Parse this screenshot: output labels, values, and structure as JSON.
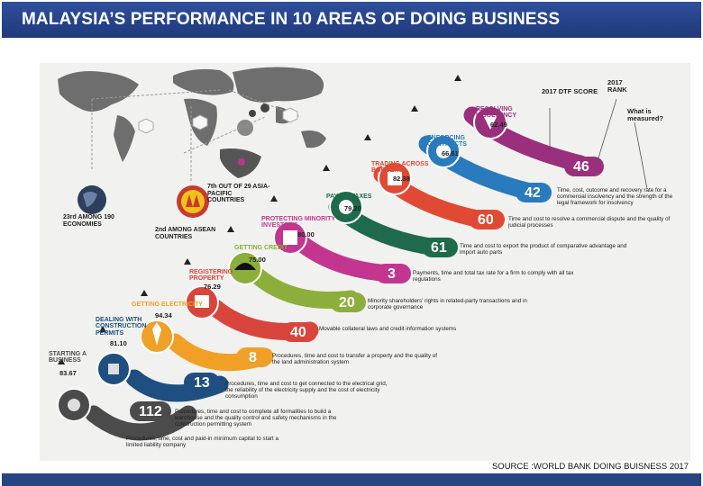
{
  "title": "MALAYSIA’S PERFORMANCE IN 10 AREAS OF DOING BUSINESS",
  "source": "SOURCE :WORLD BANK DOING BUISNESS 2017",
  "headers": {
    "dtf": "2017 DTF SCORE",
    "rank": "2017 RANK",
    "measured": "What is measured?"
  },
  "notes": {
    "world": "23rd AMONG 190 ECONOMIES",
    "asia": "7th OUT OF 29 ASIA-PACIFIC COUNTRIES",
    "asean": "2nd AMONG ASEAN COUNTRIES"
  },
  "areas": [
    {
      "label": "STARTING A BUSINESS",
      "score": "83.67",
      "rank": "112",
      "color": "#4b4b4b",
      "desc": "Procedures, time, cost and paid-in minimum capital to start a limited liability company"
    },
    {
      "label": "DEALING WITH CONSTRUCTION PERMITS",
      "score": "81.10",
      "rank": "13",
      "color": "#1f4f80",
      "desc": "Procedures, time and cost to complete all formalities to build a warehouse and the quality control and safety mechanisms in the construction permitting system"
    },
    {
      "label": "GETTING ELECTRICITY",
      "score": "94.34",
      "rank": "8",
      "color": "#f1a027",
      "desc": "Procedures, time and cost to get connected to the electrical grid, the reliability of the electricity supply and the cost of electricity consumption"
    },
    {
      "label": "REGISTERING PROPERTY",
      "score": "76.29",
      "rank": "40",
      "color": "#d8453c",
      "desc": "Procedures, time and cost to transfer a property and the quality of the land administration system"
    },
    {
      "label": "GETTING CREDIT",
      "score": "75.00",
      "rank": "20",
      "color": "#8cae3b",
      "desc": "Movable collateral laws and credit information systems"
    },
    {
      "label": "PROTECTING MINORITY INVESTORS",
      "score": "80.00",
      "rank": "3",
      "color": "#c2368f",
      "desc": "Minority shareholders' rights in related-party transactions and in corporate governance"
    },
    {
      "label": "PAYING TAXES",
      "score": "79.20",
      "rank": "61",
      "color": "#1e6a4a",
      "desc": "Payments, time and total tax rate for a firm to comply with all tax regulations"
    },
    {
      "label": "TRADING ACROSS BORDERS",
      "score": "82.38",
      "rank": "60",
      "color": "#e04a34",
      "desc": "Time and cost to export the product of comparative advantage and import auto parts"
    },
    {
      "label": "ENFORCING CONTRACTS",
      "score": "66.61",
      "rank": "42",
      "color": "#2a7bbd",
      "desc": "Time and cost to resolve a commercial dispute and the quality of judicial processes"
    },
    {
      "label": "RESOLVING INSOLVENCY",
      "score": "62.49",
      "rank": "46",
      "color": "#9a2f7d",
      "desc": "Time, cost, outcome and recovery rate for a commercial insolvency and the strength of the legal framework for insolvency"
    }
  ]
}
